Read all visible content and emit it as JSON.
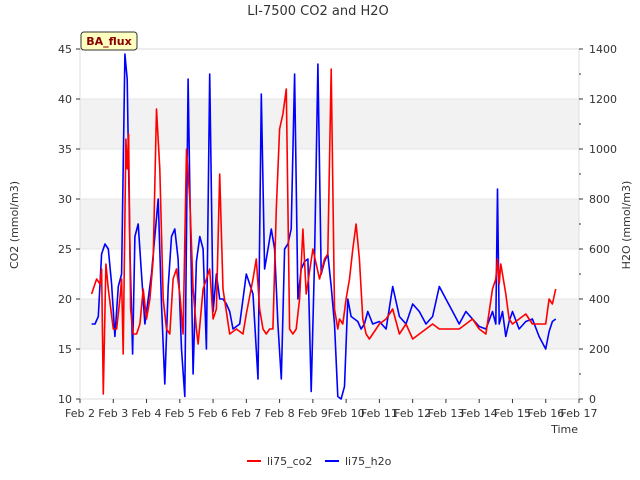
{
  "chart_data": {
    "type": "line",
    "title": "LI-7500 CO2 and H2O",
    "badge": "BA_flux",
    "xlabel": "Time",
    "ylabel_left": "CO2 (mmol/m3)",
    "ylabel_right": "H2O (mmol/m3)",
    "xlim": [
      2,
      17
    ],
    "ylim_left": [
      10,
      45
    ],
    "ylim_right": [
      0,
      1400
    ],
    "x_ticks": [
      2,
      3,
      4,
      5,
      6,
      7,
      8,
      9,
      10,
      11,
      12,
      13,
      14,
      15,
      16,
      17
    ],
    "x_tick_labels": [
      "Feb 2",
      "Feb 3",
      "Feb 4",
      "Feb 5",
      "Feb 6",
      "Feb 7",
      "Feb 8",
      "Feb 9",
      "Feb 10",
      "Feb 11",
      "Feb 12",
      "Feb 13",
      "Feb 14",
      "Feb 15",
      "Feb 16",
      "Feb 17"
    ],
    "y_left_ticks": [
      10,
      15,
      20,
      25,
      30,
      35,
      40,
      45
    ],
    "y_left_tick_labels": [
      "10",
      "15",
      "20",
      "25",
      "30",
      "35",
      "40",
      "45"
    ],
    "y_right_ticks": [
      0,
      200,
      400,
      600,
      800,
      1000,
      1200,
      1400
    ],
    "y_right_tick_labels": [
      "0",
      "200",
      "400",
      "600",
      "800",
      "1000",
      "1200",
      "1400"
    ],
    "shaded_bands_left": [
      [
        15,
        20
      ],
      [
        25,
        30
      ],
      [
        35,
        40
      ]
    ],
    "legend_position": "bottom-center",
    "series": [
      {
        "name": "li75_co2",
        "axis": "left",
        "color": "#ff0000",
        "x": [
          2.35,
          2.5,
          2.6,
          2.65,
          2.7,
          2.78,
          2.85,
          3.0,
          3.1,
          3.2,
          3.25,
          3.3,
          3.38,
          3.42,
          3.46,
          3.52,
          3.6,
          3.7,
          3.8,
          3.9,
          4.0,
          4.1,
          4.2,
          4.3,
          4.4,
          4.5,
          4.6,
          4.7,
          4.8,
          4.9,
          5.0,
          5.1,
          5.2,
          5.3,
          5.4,
          5.5,
          5.55,
          5.62,
          5.7,
          5.8,
          5.9,
          6.0,
          6.1,
          6.2,
          6.3,
          6.5,
          6.7,
          6.9,
          7.0,
          7.2,
          7.3,
          7.4,
          7.5,
          7.6,
          7.7,
          7.8,
          7.9,
          8.0,
          8.1,
          8.2,
          8.3,
          8.4,
          8.5,
          8.6,
          8.7,
          8.8,
          9.0,
          9.2,
          9.35,
          9.45,
          9.55,
          9.65,
          9.75,
          9.8,
          9.9,
          10.0,
          10.1,
          10.2,
          10.3,
          10.4,
          10.5,
          10.6,
          10.7,
          10.8,
          10.9,
          11.0,
          11.2,
          11.4,
          11.6,
          11.8,
          12.0,
          12.2,
          12.4,
          12.6,
          12.8,
          13.0,
          13.2,
          13.4,
          13.6,
          13.8,
          14.0,
          14.2,
          14.4,
          14.5,
          14.55,
          14.6,
          14.65,
          14.7,
          14.8,
          14.9,
          15.0,
          15.2,
          15.4,
          15.6,
          15.8,
          16.0,
          16.1,
          16.2,
          16.3
        ],
        "values": [
          20.5,
          22,
          21.5,
          23,
          10.5,
          23.5,
          21,
          17,
          17,
          20,
          22,
          14.5,
          36,
          33,
          36.5,
          19,
          16.5,
          16.5,
          17.5,
          21,
          18,
          20,
          24,
          39,
          33,
          20,
          17,
          16.5,
          22,
          23,
          20.5,
          16.5,
          35,
          30,
          21,
          17,
          15.5,
          18,
          21,
          22,
          23,
          18,
          19,
          32.5,
          21,
          16.5,
          17,
          16.5,
          18.5,
          22,
          24,
          19,
          17,
          16.5,
          17,
          17,
          29,
          37,
          38.5,
          41,
          17,
          16.5,
          17,
          20,
          27,
          20.5,
          25,
          22,
          24,
          24.5,
          43,
          19,
          17,
          18,
          17.5,
          20,
          22,
          25,
          27.5,
          24,
          18,
          16.5,
          16,
          16.5,
          17,
          17.5,
          18,
          19,
          16.5,
          17.5,
          16,
          16.5,
          17,
          17.5,
          17,
          17,
          17,
          17,
          17.5,
          18,
          17,
          16.5,
          21,
          22,
          24,
          21.5,
          23.5,
          22.5,
          20.5,
          18,
          17.5,
          18,
          18.5,
          17.5,
          17.5,
          17.5,
          20,
          19.5,
          21
        ]
      },
      {
        "name": "li75_h2o",
        "axis": "right",
        "color": "#0000ff",
        "x": [
          2.35,
          2.45,
          2.55,
          2.65,
          2.75,
          2.85,
          2.95,
          3.05,
          3.15,
          3.25,
          3.35,
          3.42,
          3.5,
          3.58,
          3.65,
          3.75,
          3.85,
          3.95,
          4.05,
          4.15,
          4.25,
          4.35,
          4.45,
          4.55,
          4.65,
          4.75,
          4.85,
          4.95,
          5.05,
          5.15,
          5.25,
          5.3,
          5.4,
          5.5,
          5.6,
          5.7,
          5.8,
          5.9,
          6.0,
          6.1,
          6.2,
          6.3,
          6.4,
          6.5,
          6.6,
          6.8,
          7.0,
          7.2,
          7.35,
          7.45,
          7.55,
          7.65,
          7.75,
          7.85,
          7.95,
          8.05,
          8.15,
          8.25,
          8.35,
          8.45,
          8.55,
          8.65,
          8.75,
          8.85,
          8.95,
          9.05,
          9.15,
          9.25,
          9.35,
          9.45,
          9.55,
          9.65,
          9.75,
          9.85,
          9.95,
          10.05,
          10.15,
          10.25,
          10.35,
          10.45,
          10.55,
          10.65,
          10.8,
          11.0,
          11.2,
          11.4,
          11.6,
          11.8,
          12.0,
          12.2,
          12.4,
          12.6,
          12.8,
          13.0,
          13.2,
          13.4,
          13.6,
          13.8,
          14.0,
          14.2,
          14.4,
          14.5,
          14.55,
          14.6,
          14.7,
          14.8,
          14.9,
          15.0,
          15.2,
          15.4,
          15.6,
          15.8,
          16.0,
          16.1,
          16.2,
          16.3
        ],
        "values": [
          300,
          300,
          330,
          580,
          620,
          600,
          460,
          250,
          450,
          500,
          1380,
          1280,
          600,
          180,
          650,
          700,
          500,
          300,
          400,
          500,
          650,
          800,
          380,
          60,
          450,
          650,
          680,
          560,
          200,
          10,
          1280,
          850,
          100,
          550,
          650,
          600,
          200,
          1300,
          350,
          500,
          400,
          400,
          380,
          350,
          280,
          300,
          500,
          420,
          80,
          1220,
          520,
          600,
          680,
          600,
          300,
          80,
          600,
          620,
          680,
          1300,
          400,
          520,
          550,
          560,
          30,
          550,
          1340,
          500,
          550,
          580,
          450,
          300,
          10,
          0,
          50,
          400,
          330,
          320,
          310,
          280,
          300,
          350,
          300,
          310,
          280,
          450,
          330,
          300,
          380,
          350,
          300,
          330,
          450,
          400,
          350,
          300,
          350,
          320,
          290,
          280,
          350,
          300,
          840,
          300,
          350,
          250,
          310,
          350,
          280,
          310,
          320,
          250,
          200,
          270,
          310,
          320
        ]
      }
    ]
  }
}
